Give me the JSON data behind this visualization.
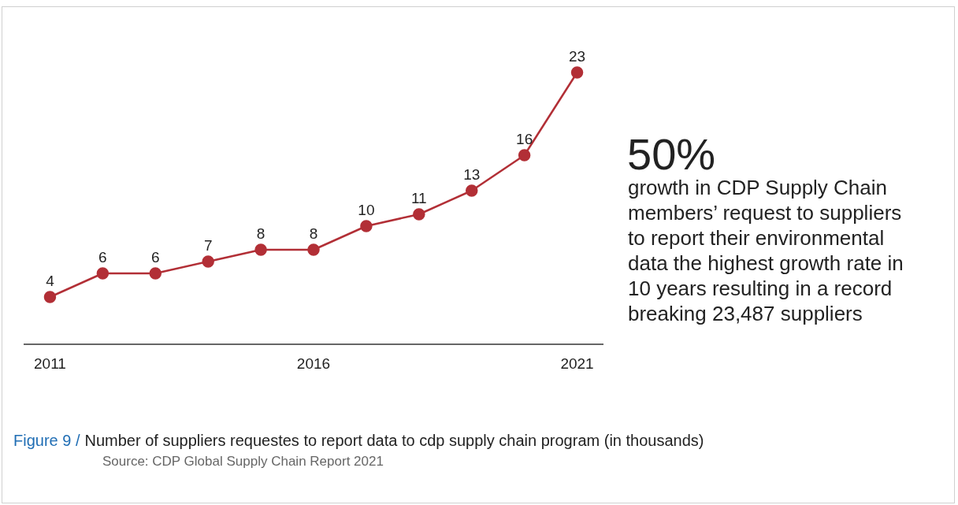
{
  "chart_data": {
    "type": "line",
    "title": "Number of suppliers requestes to report data to cdp supply chain program (in thousands)",
    "x": [
      2011,
      2012,
      2013,
      2014,
      2015,
      2016,
      2017,
      2018,
      2019,
      2020,
      2021
    ],
    "series": [
      {
        "color": "#b22f36",
        "values": [
          4,
          6,
          6,
          7,
          8,
          8,
          10,
          11,
          13,
          16,
          23
        ]
      }
    ],
    "xlim": [
      2010.5,
      2021.5
    ],
    "xticks": [
      2011,
      2016,
      2021
    ],
    "data_labels": true,
    "marker": "circle",
    "line_style": "solid",
    "tick_labels": "x",
    "annotations": [
      "50%",
      "growth in CDP Supply Chain members’ request to suppliers to report their environmental data the highest growth rate in 10 years resulting in a record breaking 23,487 suppliers",
      "Figure 9 /",
      "Source: CDP Global Supply Chain Report 2021"
    ]
  }
}
